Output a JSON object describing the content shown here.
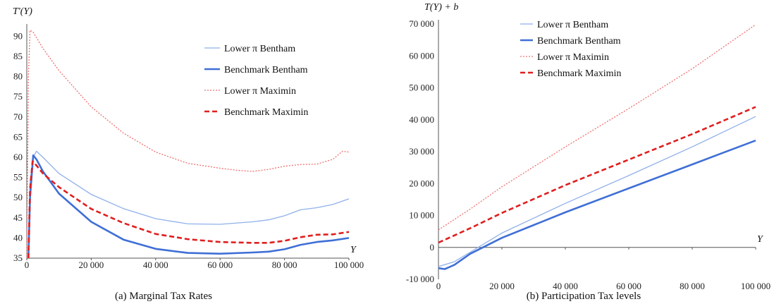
{
  "chart_data": [
    {
      "type": "line",
      "caption": "(a) Marginal Tax Rates",
      "ylabel": "T'(Y)",
      "xlabel": "Y",
      "xlim": [
        0,
        100000
      ],
      "ylim": [
        35,
        92
      ],
      "x_ticks": [
        "0",
        "20 000",
        "40 000",
        "60 000",
        "80 000",
        "100 000"
      ],
      "y_ticks": [
        "35",
        "40",
        "45",
        "50",
        "55",
        "60",
        "65",
        "70",
        "75",
        "80",
        "85",
        "90"
      ],
      "legend_position": "top-right",
      "series": [
        {
          "name": "Lower π Bentham",
          "color": "#8fb0ea",
          "style": "thin-solid",
          "points": [
            [
              500,
              35
            ],
            [
              1000,
              54
            ],
            [
              2000,
              60
            ],
            [
              3000,
              61.5
            ],
            [
              5000,
              60
            ],
            [
              10000,
              56
            ],
            [
              20000,
              50.8
            ],
            [
              30000,
              47.3
            ],
            [
              40000,
              44.8
            ],
            [
              50000,
              43.5
            ],
            [
              60000,
              43.4
            ],
            [
              70000,
              44
            ],
            [
              75000,
              44.5
            ],
            [
              80000,
              45.5
            ],
            [
              85000,
              47
            ],
            [
              90000,
              47.5
            ],
            [
              95000,
              48.3
            ],
            [
              100000,
              49.7
            ]
          ]
        },
        {
          "name": "Benchmark Bentham",
          "color": "#3f6fd6",
          "style": "thick-solid",
          "points": [
            [
              500,
              35
            ],
            [
              1000,
              50
            ],
            [
              2000,
              60.5
            ],
            [
              3000,
              59.5
            ],
            [
              5000,
              56.5
            ],
            [
              10000,
              51
            ],
            [
              20000,
              44
            ],
            [
              30000,
              39.6
            ],
            [
              40000,
              37.3
            ],
            [
              50000,
              36.3
            ],
            [
              60000,
              36.1
            ],
            [
              70000,
              36.4
            ],
            [
              75000,
              36.6
            ],
            [
              80000,
              37.2
            ],
            [
              85000,
              38.3
            ],
            [
              90000,
              39
            ],
            [
              95000,
              39.4
            ],
            [
              100000,
              40
            ]
          ]
        },
        {
          "name": "Lower π Maximin",
          "color": "#f07070",
          "style": "thin-dotted",
          "points": [
            [
              0,
              35
            ],
            [
              500,
              80
            ],
            [
              1000,
              91.5
            ],
            [
              2000,
              91
            ],
            [
              5000,
              87
            ],
            [
              10000,
              81.5
            ],
            [
              20000,
              72.5
            ],
            [
              30000,
              66
            ],
            [
              40000,
              61.3
            ],
            [
              50000,
              58.5
            ],
            [
              60000,
              57.3
            ],
            [
              65000,
              56.8
            ],
            [
              70000,
              56.5
            ],
            [
              75000,
              57
            ],
            [
              80000,
              57.8
            ],
            [
              85000,
              58.2
            ],
            [
              90000,
              58.3
            ],
            [
              95000,
              59.5
            ],
            [
              98000,
              61.5
            ],
            [
              100000,
              61.3
            ]
          ]
        },
        {
          "name": "Benchmark Maximin",
          "color": "#e01f1f",
          "style": "thick-dashed",
          "points": [
            [
              500,
              35
            ],
            [
              1000,
              52
            ],
            [
              1800,
              59
            ],
            [
              3000,
              58
            ],
            [
              5000,
              56
            ],
            [
              10000,
              52.6
            ],
            [
              20000,
              47.2
            ],
            [
              30000,
              43.7
            ],
            [
              40000,
              41
            ],
            [
              50000,
              39.7
            ],
            [
              60000,
              39
            ],
            [
              70000,
              38.8
            ],
            [
              75000,
              38.8
            ],
            [
              80000,
              39.3
            ],
            [
              85000,
              40.2
            ],
            [
              90000,
              40.8
            ],
            [
              95000,
              40.9
            ],
            [
              100000,
              41.5
            ]
          ]
        }
      ]
    },
    {
      "type": "line",
      "caption": "(b) Participation Tax levels",
      "ylabel": "T(Y) + b",
      "xlabel": "Y",
      "xlim": [
        0,
        100000
      ],
      "ylim": [
        -10000,
        70000
      ],
      "x_ticks": [
        "0",
        "20 000",
        "40 000",
        "60 000",
        "80 000",
        "100 000"
      ],
      "y_ticks": [
        "-10 000",
        "0",
        "10 000",
        "20 000",
        "30 000",
        "40 000",
        "50 000",
        "60 000",
        "70 000"
      ],
      "legend_position": "top-left",
      "series": [
        {
          "name": "Lower π Bentham",
          "color": "#8fb0ea",
          "style": "thin-solid",
          "points": [
            [
              0,
              -6000
            ],
            [
              5000,
              -4500
            ],
            [
              10000,
              -1500
            ],
            [
              20000,
              4500
            ],
            [
              40000,
              13800
            ],
            [
              60000,
              22500
            ],
            [
              80000,
              31500
            ],
            [
              100000,
              41000
            ]
          ]
        },
        {
          "name": "Benchmark Bentham",
          "color": "#3f6fd6",
          "style": "thick-solid",
          "points": [
            [
              0,
              -6500
            ],
            [
              2000,
              -6800
            ],
            [
              5000,
              -5500
            ],
            [
              10000,
              -2000
            ],
            [
              20000,
              3000
            ],
            [
              40000,
              11000
            ],
            [
              60000,
              18500
            ],
            [
              80000,
              26000
            ],
            [
              100000,
              33500
            ]
          ]
        },
        {
          "name": "Lower π Maximin",
          "color": "#f07070",
          "style": "thin-dotted",
          "points": [
            [
              0,
              5500
            ],
            [
              10000,
              12000
            ],
            [
              20000,
              19000
            ],
            [
              40000,
              31500
            ],
            [
              60000,
              43500
            ],
            [
              80000,
              56000
            ],
            [
              100000,
              69800
            ]
          ]
        },
        {
          "name": "Benchmark Maximin",
          "color": "#e01f1f",
          "style": "thick-dashed",
          "points": [
            [
              0,
              1500
            ],
            [
              10000,
              6000
            ],
            [
              20000,
              10800
            ],
            [
              40000,
              19500
            ],
            [
              60000,
              27500
            ],
            [
              80000,
              35500
            ],
            [
              100000,
              44000
            ]
          ]
        }
      ]
    }
  ]
}
